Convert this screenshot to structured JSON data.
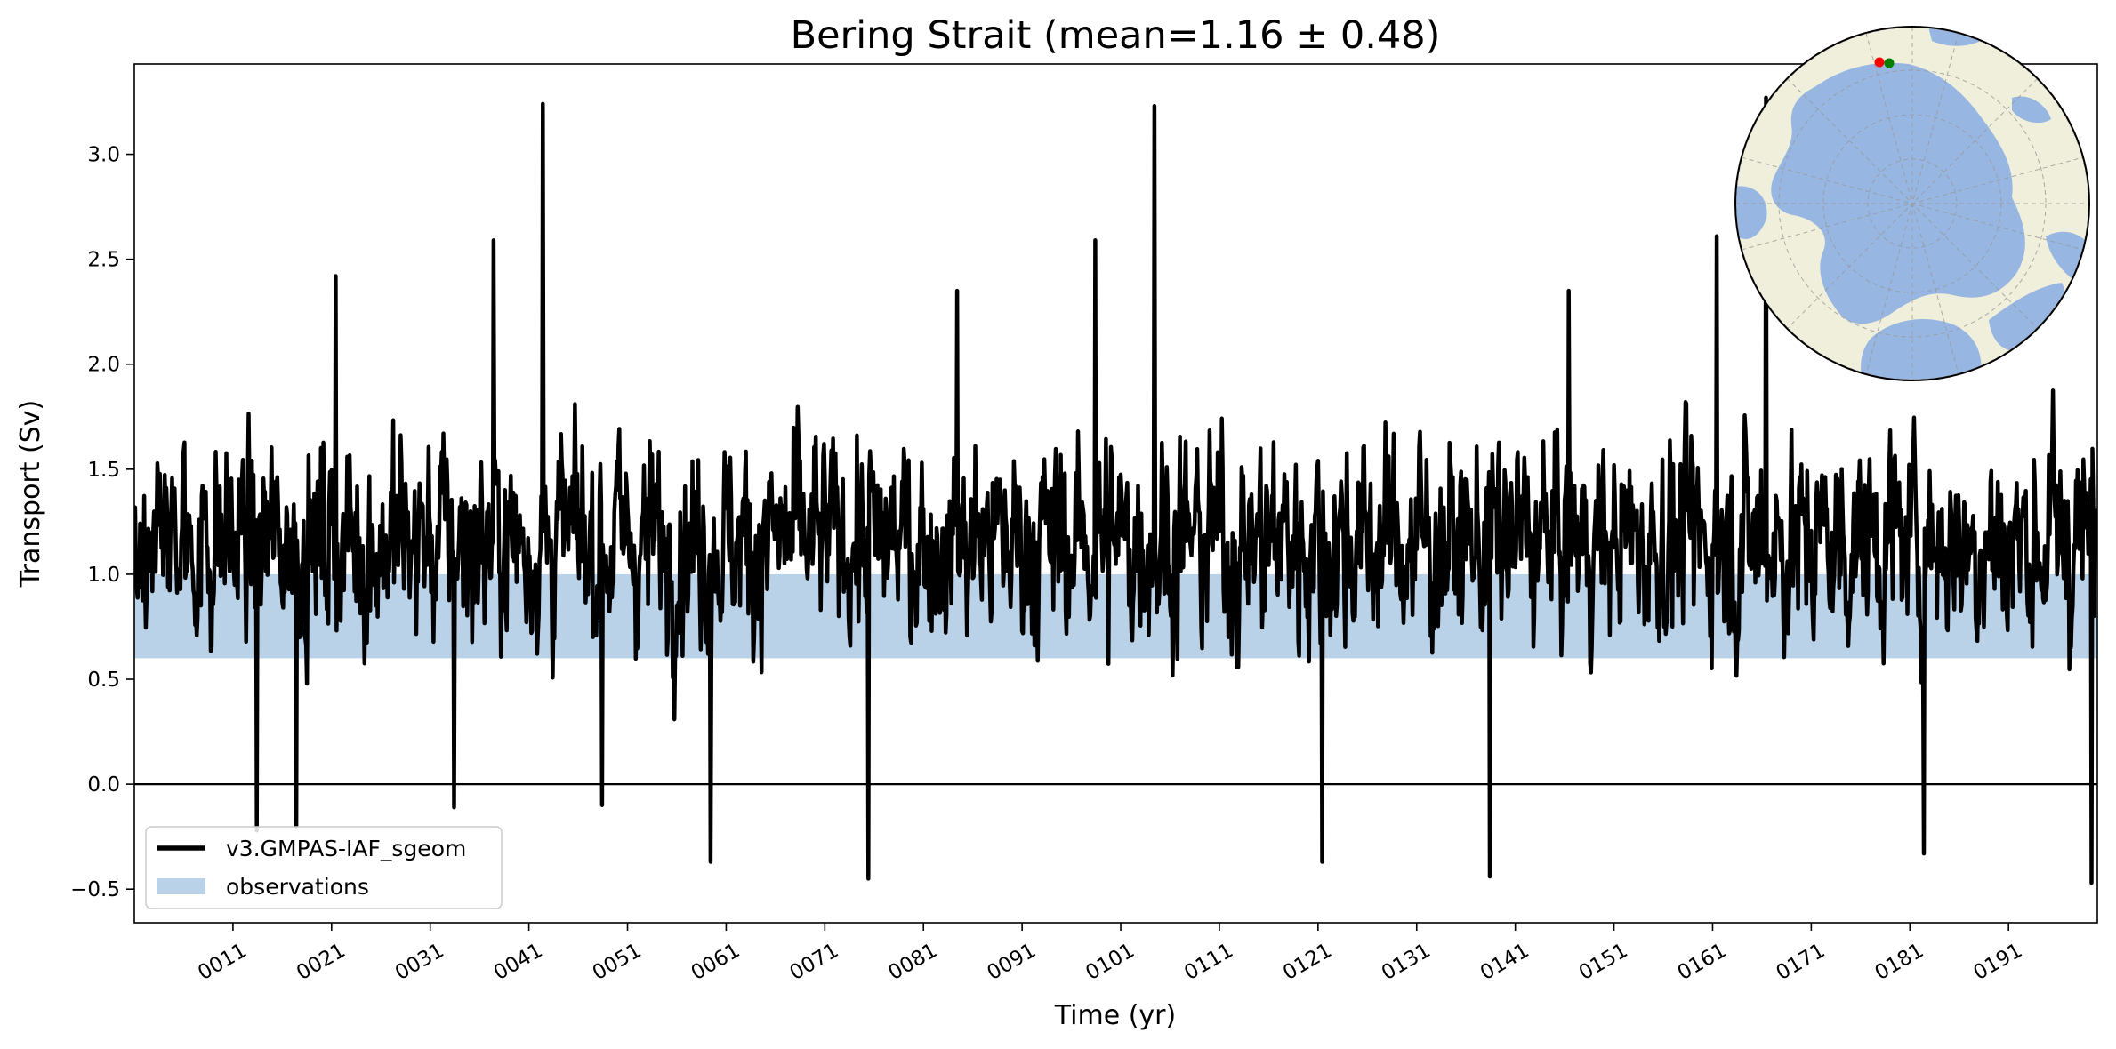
{
  "chart_data": {
    "type": "line",
    "title": "Bering Strait (mean=1.16 ± 0.48)",
    "xlabel": "Time (yr)",
    "ylabel": "Transport (Sv)",
    "xlim": [
      1,
      200
    ],
    "ylim": [
      -0.66,
      3.43
    ],
    "x_ticks": [
      11,
      21,
      31,
      41,
      51,
      61,
      71,
      81,
      91,
      101,
      111,
      121,
      131,
      141,
      151,
      161,
      171,
      181,
      191
    ],
    "x_tick_labels": [
      "0011",
      "0021",
      "0031",
      "0041",
      "0051",
      "0061",
      "0071",
      "0081",
      "0091",
      "0101",
      "0111",
      "0121",
      "0131",
      "0141",
      "0151",
      "0161",
      "0171",
      "0181",
      "0191"
    ],
    "y_ticks": [
      -0.5,
      0.0,
      0.5,
      1.0,
      1.5,
      2.0,
      2.5,
      3.0
    ],
    "y_tick_labels": [
      "−0.5",
      "0.0",
      "0.5",
      "1.0",
      "1.5",
      "2.0",
      "2.5",
      "3.0"
    ],
    "zero_line": 0,
    "grid": false,
    "legend_position": "bottom-left",
    "series": [
      {
        "name": "v3.GMPAS-IAF_sgeom",
        "color": "#000000",
        "mean": 1.16,
        "std": 0.48,
        "extremes": [
          {
            "x": 42,
            "y": 3.24
          },
          {
            "x": 104,
            "y": 3.23
          },
          {
            "x": 166,
            "y": 3.27
          },
          {
            "x": 37,
            "y": 2.59
          },
          {
            "x": 98,
            "y": 2.59
          },
          {
            "x": 161,
            "y": 2.61
          },
          {
            "x": 21,
            "y": 2.42
          },
          {
            "x": 146,
            "y": 2.35
          },
          {
            "x": 84,
            "y": 2.35
          },
          {
            "x": 13,
            "y": -0.22
          },
          {
            "x": 17,
            "y": -0.2
          },
          {
            "x": 59,
            "y": -0.37
          },
          {
            "x": 75,
            "y": -0.45
          },
          {
            "x": 121,
            "y": -0.37
          },
          {
            "x": 138,
            "y": -0.44
          },
          {
            "x": 182,
            "y": -0.33
          },
          {
            "x": 199,
            "y": -0.47
          },
          {
            "x": 33,
            "y": -0.11
          },
          {
            "x": 48,
            "y": -0.1
          }
        ]
      }
    ],
    "observations_band": {
      "name": "observations",
      "range": [
        0.6,
        1.0
      ],
      "color": "#b9d2e8"
    },
    "inset_map": {
      "projection": "north-polar-stereographic",
      "ocean_color": "#97b6e2",
      "land_color": "#efefdb",
      "markers": [
        {
          "color": "#ff0000"
        },
        {
          "color": "#008000"
        }
      ]
    }
  }
}
